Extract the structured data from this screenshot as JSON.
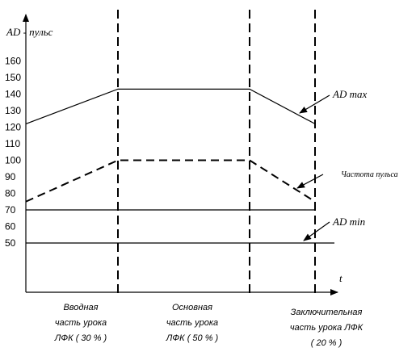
{
  "chart_data": {
    "type": "line",
    "ylabel": "AD -  пульс",
    "xlabel": "t",
    "yticks": [
      50,
      60,
      70,
      80,
      90,
      100,
      110,
      120,
      130,
      140,
      150,
      160
    ],
    "phases": [
      {
        "lines": [
          "Вводная",
          "часть урока",
          "ЛФК  ( 30 % )"
        ]
      },
      {
        "lines": [
          "Основная",
          "часть урока",
          "ЛФК  ( 50 % )"
        ]
      },
      {
        "lines": [
          "Заключительная",
          "часть урока ЛФК",
          "( 20 % )"
        ]
      }
    ],
    "series": [
      {
        "name": "AD max",
        "style": "solid",
        "points": [
          [
            "start",
            122
          ],
          [
            "end-1",
            143
          ],
          [
            "end-2",
            143
          ],
          [
            "end-3",
            122
          ]
        ]
      },
      {
        "name": "Частота пульса",
        "style": "dashed",
        "points": [
          [
            "start",
            75
          ],
          [
            "end-1",
            100
          ],
          [
            "end-2",
            100
          ],
          [
            "end-3",
            75
          ]
        ]
      },
      {
        "name": "AD min",
        "style": "solid",
        "points": [
          [
            "start",
            70
          ],
          [
            "end-3",
            70
          ]
        ]
      },
      {
        "name": "",
        "style": "solid",
        "points": [
          [
            "start",
            50
          ],
          [
            "end-3+",
            50
          ]
        ]
      }
    ]
  }
}
